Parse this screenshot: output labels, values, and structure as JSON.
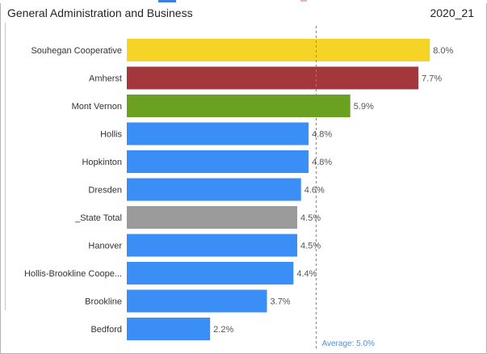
{
  "header": {
    "title": "General Administration and Business",
    "year": "2020_21"
  },
  "colors": {
    "yellow": "#f5d327",
    "red": "#a3373c",
    "green": "#6aa121",
    "blue": "#3a8ef6",
    "gray": "#9b9b9b",
    "average_line": "#4a90e2"
  },
  "chart_data": {
    "type": "bar",
    "orientation": "horizontal",
    "categories": [
      "Souhegan Cooperative",
      "Amherst",
      "Mont Vernon",
      "Hollis",
      "Hopkinton",
      "Dresden",
      "_State Total",
      "Hanover",
      "Hollis-Brookline Coope...",
      "Brookline",
      "Bedford"
    ],
    "values": [
      8.0,
      7.7,
      5.9,
      4.8,
      4.8,
      4.6,
      4.5,
      4.5,
      4.4,
      3.7,
      2.2
    ],
    "value_labels": [
      "8.0%",
      "7.7%",
      "5.9%",
      "4.8%",
      "4.8%",
      "4.6%",
      "4.5%",
      "4.5%",
      "4.4%",
      "3.7%",
      "2.2%"
    ],
    "bar_colors": [
      "yellow",
      "red",
      "green",
      "blue",
      "blue",
      "blue",
      "gray",
      "blue",
      "blue",
      "blue",
      "blue"
    ],
    "average": 5.0,
    "average_label": "Average: 5.0%",
    "xlim": [
      0,
      8.0
    ],
    "grid": false,
    "legend": "none"
  }
}
